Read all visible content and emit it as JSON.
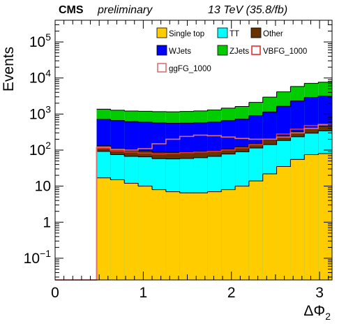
{
  "header": {
    "experiment": "CMS",
    "status": "preliminary",
    "energy": "13 TeV (35.8/fb)"
  },
  "chart_data": {
    "type": "area",
    "xlabel": "ΔΦ",
    "xlabel_sub": "2",
    "ylabel": "Events",
    "log_y": true,
    "xlim": [
      0,
      3.1416
    ],
    "ylim": [
      0.025,
      400000
    ],
    "x_ticks": [
      {
        "value": 0,
        "label": "0"
      },
      {
        "value": 1,
        "label": "1"
      },
      {
        "value": 2,
        "label": "2"
      },
      {
        "value": 3,
        "label": "3"
      }
    ],
    "y_ticks": [
      {
        "value": 0.1,
        "base": "10",
        "exp": "−1"
      },
      {
        "value": 1,
        "base": "1",
        "exp": ""
      },
      {
        "value": 10,
        "base": "10",
        "exp": ""
      },
      {
        "value": 100,
        "base": "10",
        "exp": "2"
      },
      {
        "value": 1000,
        "base": "10",
        "exp": "3"
      },
      {
        "value": 10000,
        "base": "10",
        "exp": "4"
      },
      {
        "value": 100000,
        "base": "10",
        "exp": "5"
      }
    ],
    "bin_edges": [
      0.0,
      0.157,
      0.314,
      0.471,
      0.628,
      0.785,
      0.942,
      1.1,
      1.257,
      1.414,
      1.571,
      1.728,
      1.885,
      2.042,
      2.199,
      2.356,
      2.513,
      2.67,
      2.827,
      2.985,
      3.1416
    ],
    "stacked_series": [
      {
        "name": "Single top",
        "color": "#ffcc00",
        "values": [
          0,
          0,
          0,
          17,
          15,
          12,
          10,
          8,
          7,
          6.5,
          6.5,
          7,
          8,
          10,
          14,
          22,
          35,
          55,
          75,
          80
        ]
      },
      {
        "name": "TT",
        "color": "#00ffff",
        "values": [
          0,
          0,
          0,
          75,
          60,
          55,
          55,
          50,
          50,
          52,
          55,
          60,
          70,
          80,
          100,
          120,
          150,
          180,
          220,
          260
        ]
      },
      {
        "name": "Other",
        "color": "#663300",
        "values": [
          0,
          0,
          0,
          40,
          35,
          30,
          30,
          30,
          30,
          30,
          30,
          30,
          30,
          35,
          40,
          50,
          60,
          90,
          110,
          120
        ]
      },
      {
        "name": "WJets",
        "color": "#0000ff",
        "values": [
          0,
          0,
          0,
          580,
          550,
          520,
          500,
          480,
          470,
          470,
          480,
          500,
          550,
          600,
          750,
          950,
          1400,
          2000,
          2500,
          2700
        ]
      },
      {
        "name": "ZJets",
        "color": "#00cc00",
        "values": [
          0,
          0,
          0,
          650,
          620,
          600,
          600,
          600,
          600,
          620,
          650,
          700,
          800,
          900,
          1200,
          1800,
          2500,
          3500,
          4200,
          4500
        ]
      }
    ],
    "overlay_series": [
      {
        "name": "VBFG_1000",
        "color": "#e03030",
        "values": [
          0.025,
          0.025,
          0.025,
          112,
          95,
          88,
          82,
          78,
          80,
          85,
          88,
          92,
          100,
          115,
          140,
          200,
          280,
          380,
          480,
          520
        ]
      },
      {
        "name": "ggFG_1000",
        "color": "#e07070",
        "values": [
          0.025,
          0.025,
          0.025,
          120,
          105,
          100,
          110,
          150,
          200,
          240,
          260,
          250,
          230,
          210,
          200,
          200,
          230,
          300,
          400,
          500
        ]
      }
    ],
    "legend": {
      "position": "top-right",
      "entries": [
        {
          "label": "Single top",
          "color": "#ffcc00",
          "style": "fill"
        },
        {
          "label": "TT",
          "color": "#00ffff",
          "style": "fill"
        },
        {
          "label": "Other",
          "color": "#663300",
          "style": "fill"
        },
        {
          "label": "WJets",
          "color": "#0000ff",
          "style": "fill"
        },
        {
          "label": "ZJets",
          "color": "#00cc00",
          "style": "fill"
        },
        {
          "label": "VBFG_1000",
          "color": "#e03030",
          "style": "line"
        },
        {
          "label": "ggFG_1000",
          "color": "#e07070",
          "style": "line"
        }
      ]
    }
  }
}
